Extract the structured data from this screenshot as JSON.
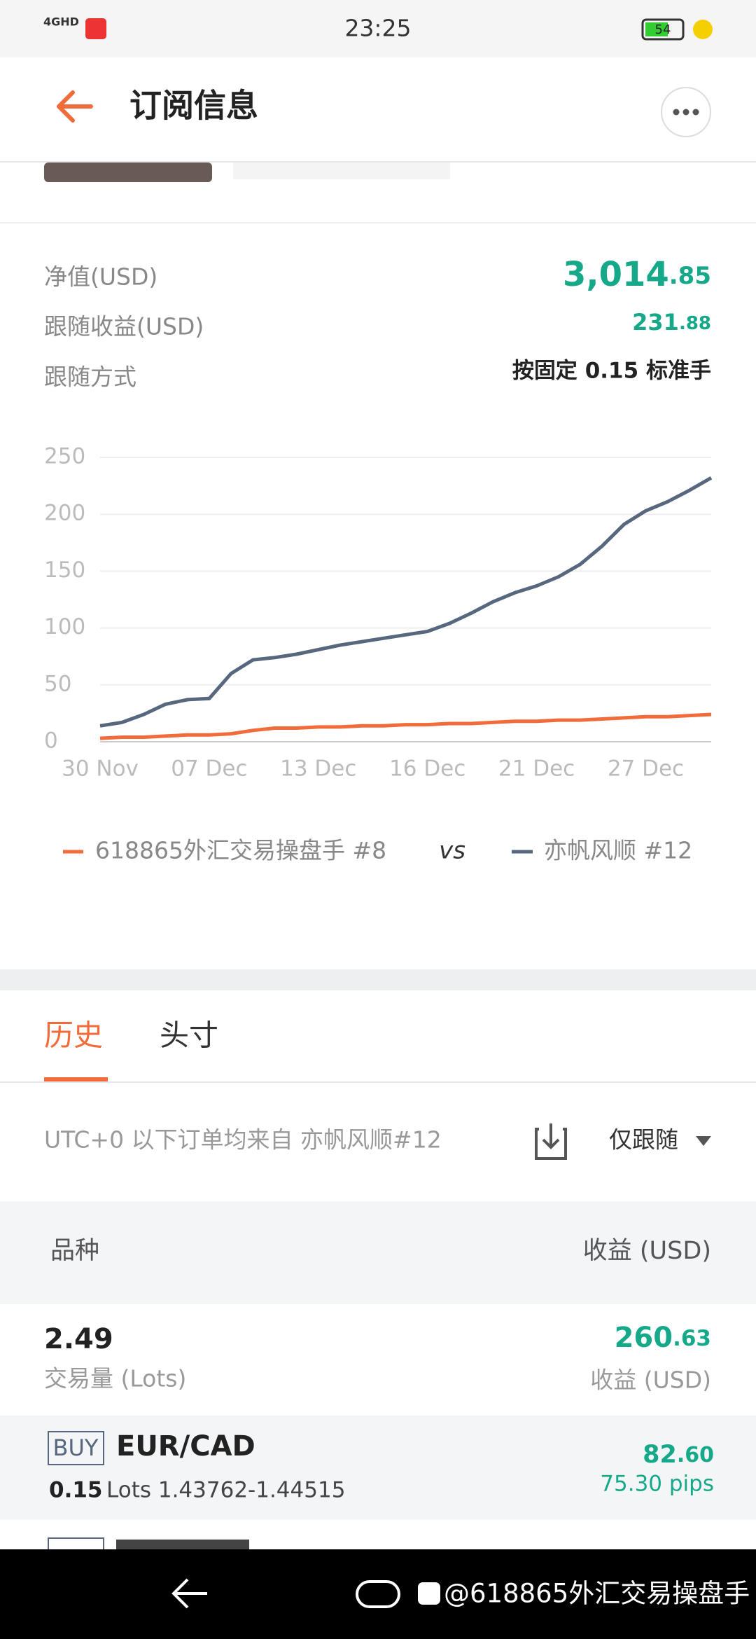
{
  "status_bar": {
    "network": "4GHD",
    "time": "23:25",
    "battery": "54"
  },
  "header": {
    "title": "订阅信息"
  },
  "account": {
    "rows": [
      {
        "label": "净值(USD)",
        "value_main": "3,014",
        "value_decimal": ".85"
      },
      {
        "label": "跟随收益(USD)",
        "value_main": "231",
        "value_decimal": ".88"
      },
      {
        "label": "跟随方式",
        "value": "按固定 0.15 标准手"
      }
    ]
  },
  "chart_data": {
    "type": "line",
    "categories": [
      "30 Nov",
      null,
      null,
      null,
      null,
      "07 Dec",
      null,
      null,
      null,
      null,
      "13 Dec",
      null,
      null,
      null,
      null,
      "16 Dec",
      null,
      null,
      null,
      null,
      "21 Dec",
      null,
      null,
      null,
      null,
      "27 Dec",
      null,
      null,
      null
    ],
    "series": [
      {
        "name": "618865外汇交易操盘手 #8",
        "color": "#f26b3a",
        "values": [
          3,
          4,
          4,
          5,
          6,
          6,
          7,
          10,
          12,
          12,
          13,
          13,
          14,
          14,
          15,
          15,
          16,
          16,
          17,
          18,
          18,
          19,
          19,
          20,
          21,
          22,
          22,
          23,
          24
        ]
      },
      {
        "name": "亦帆风顺 #12",
        "color": "#56677e",
        "values": [
          14,
          17,
          24,
          33,
          37,
          38,
          60,
          72,
          74,
          77,
          81,
          85,
          88,
          91,
          94,
          97,
          104,
          113,
          123,
          131,
          137,
          145,
          156,
          172,
          191,
          203,
          211,
          221,
          232
        ]
      }
    ],
    "legend_separator": "vs",
    "ylim": [
      0,
      250
    ],
    "yticks": [
      0,
      50,
      100,
      150,
      200,
      250
    ],
    "grid": true
  },
  "tabs": [
    "历史",
    "头寸"
  ],
  "filter": {
    "note": "UTC+0 以下订单均来自 亦帆风顺#12",
    "option": "仅跟随"
  },
  "table": {
    "header": [
      "品种",
      "收益 (USD)"
    ],
    "summary": {
      "volume": "2.49",
      "volume_label": "交易量 (Lots)",
      "profit_main": "260",
      "profit_decimal": ".63",
      "profit_label": "收益 (USD)"
    },
    "trades": [
      {
        "side": "BUY",
        "symbol": "EUR/CAD",
        "lots": "0.15",
        "detail": "Lots 1.43762-1.44515",
        "profit_main": "82",
        "profit_decimal": ".60",
        "pips": "75.30 pips"
      }
    ]
  },
  "nav_bar": {
    "watermark": "@618865外汇交易操盘手"
  }
}
